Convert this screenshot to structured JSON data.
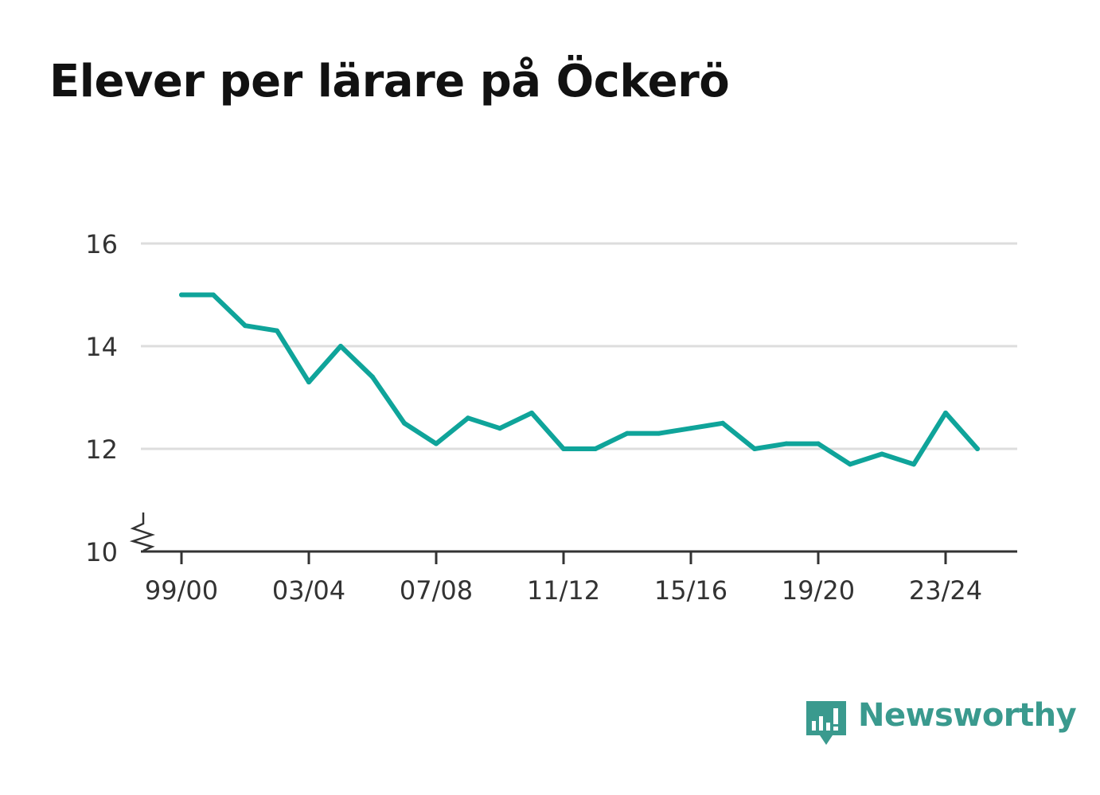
{
  "title": "Elever per lärare på Öckerö",
  "brand": {
    "name": "Newsworthy",
    "color": "#3a9a8e",
    "icon": "bar-chart-speech-bubble-icon"
  },
  "chart_data": {
    "type": "line",
    "title": "Elever per lärare på Öckerö",
    "xlabel": "",
    "ylabel": "",
    "ylim": [
      10,
      16
    ],
    "y_ticks": [
      10,
      12,
      14,
      16
    ],
    "y_axis_break": true,
    "grid": true,
    "x_tick_labels": [
      "99/00",
      "03/04",
      "07/08",
      "11/12",
      "15/16",
      "19/20",
      "23/24"
    ],
    "x": [
      "99/00",
      "00/01",
      "01/02",
      "02/03",
      "03/04",
      "04/05",
      "05/06",
      "06/07",
      "07/08",
      "08/09",
      "09/10",
      "10/11",
      "11/12",
      "12/13",
      "13/14",
      "14/15",
      "15/16",
      "16/17",
      "17/18",
      "18/19",
      "19/20",
      "20/21",
      "21/22",
      "22/23",
      "23/24",
      "24/25"
    ],
    "series": [
      {
        "color": "#0fa49a",
        "values": [
          15.0,
          15.0,
          14.4,
          14.3,
          13.3,
          14.0,
          13.4,
          12.5,
          12.1,
          12.6,
          12.4,
          12.7,
          12.0,
          12.0,
          12.3,
          12.3,
          12.4,
          12.5,
          12.0,
          12.1,
          12.1,
          11.7,
          11.9,
          11.7,
          12.7,
          12.0
        ]
      }
    ]
  }
}
